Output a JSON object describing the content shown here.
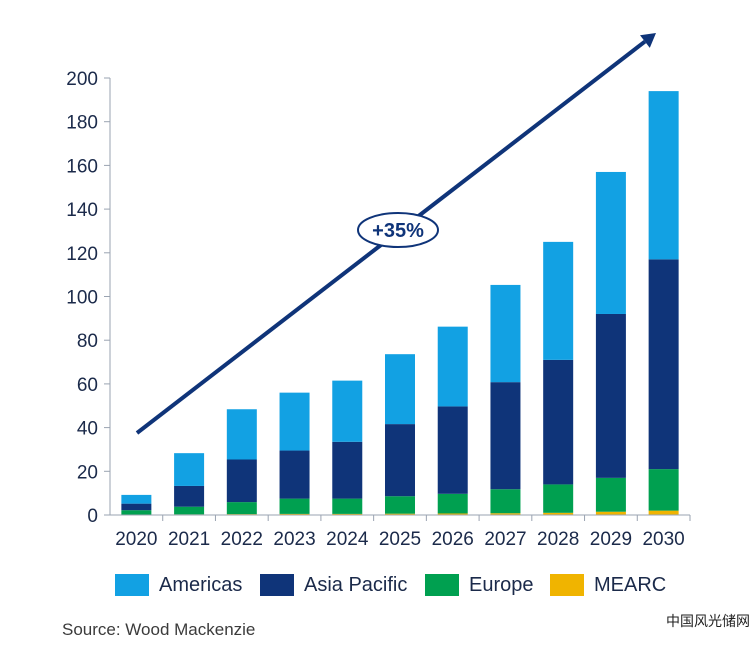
{
  "chart_data": {
    "type": "bar",
    "stacked": true,
    "categories": [
      "2020",
      "2021",
      "2022",
      "2023",
      "2024",
      "2025",
      "2026",
      "2027",
      "2028",
      "2029",
      "2030"
    ],
    "series": [
      {
        "name": "MEARC",
        "color": "#f0b400",
        "values": [
          0.2,
          0.3,
          0.4,
          0.5,
          0.5,
          0.6,
          0.7,
          0.8,
          1.0,
          1.5,
          2.0
        ]
      },
      {
        "name": "Europe",
        "color": "#00a050",
        "values": [
          2,
          3.5,
          5.5,
          7,
          7,
          8,
          9,
          11,
          13,
          15.5,
          19
        ]
      },
      {
        "name": "Asia Pacific",
        "color": "#0f3479",
        "values": [
          3,
          9.5,
          19.5,
          22,
          26,
          33,
          40,
          49,
          57,
          75,
          96
        ]
      },
      {
        "name": "Americas",
        "color": "#12a1e3",
        "values": [
          4,
          15,
          23,
          26.5,
          28,
          32,
          36.5,
          44.5,
          54,
          65,
          77
        ]
      }
    ],
    "yticks": [
      0,
      20,
      40,
      60,
      80,
      100,
      120,
      140,
      160,
      180,
      200
    ],
    "ylim": [
      0,
      200
    ],
    "annotation": "+35%",
    "legend_order": [
      "Americas",
      "Asia Pacific",
      "Europe",
      "MEARC"
    ],
    "legend_position": "bottom"
  },
  "source": "Source: Wood Mackenzie",
  "watermark": "中国风光储网"
}
